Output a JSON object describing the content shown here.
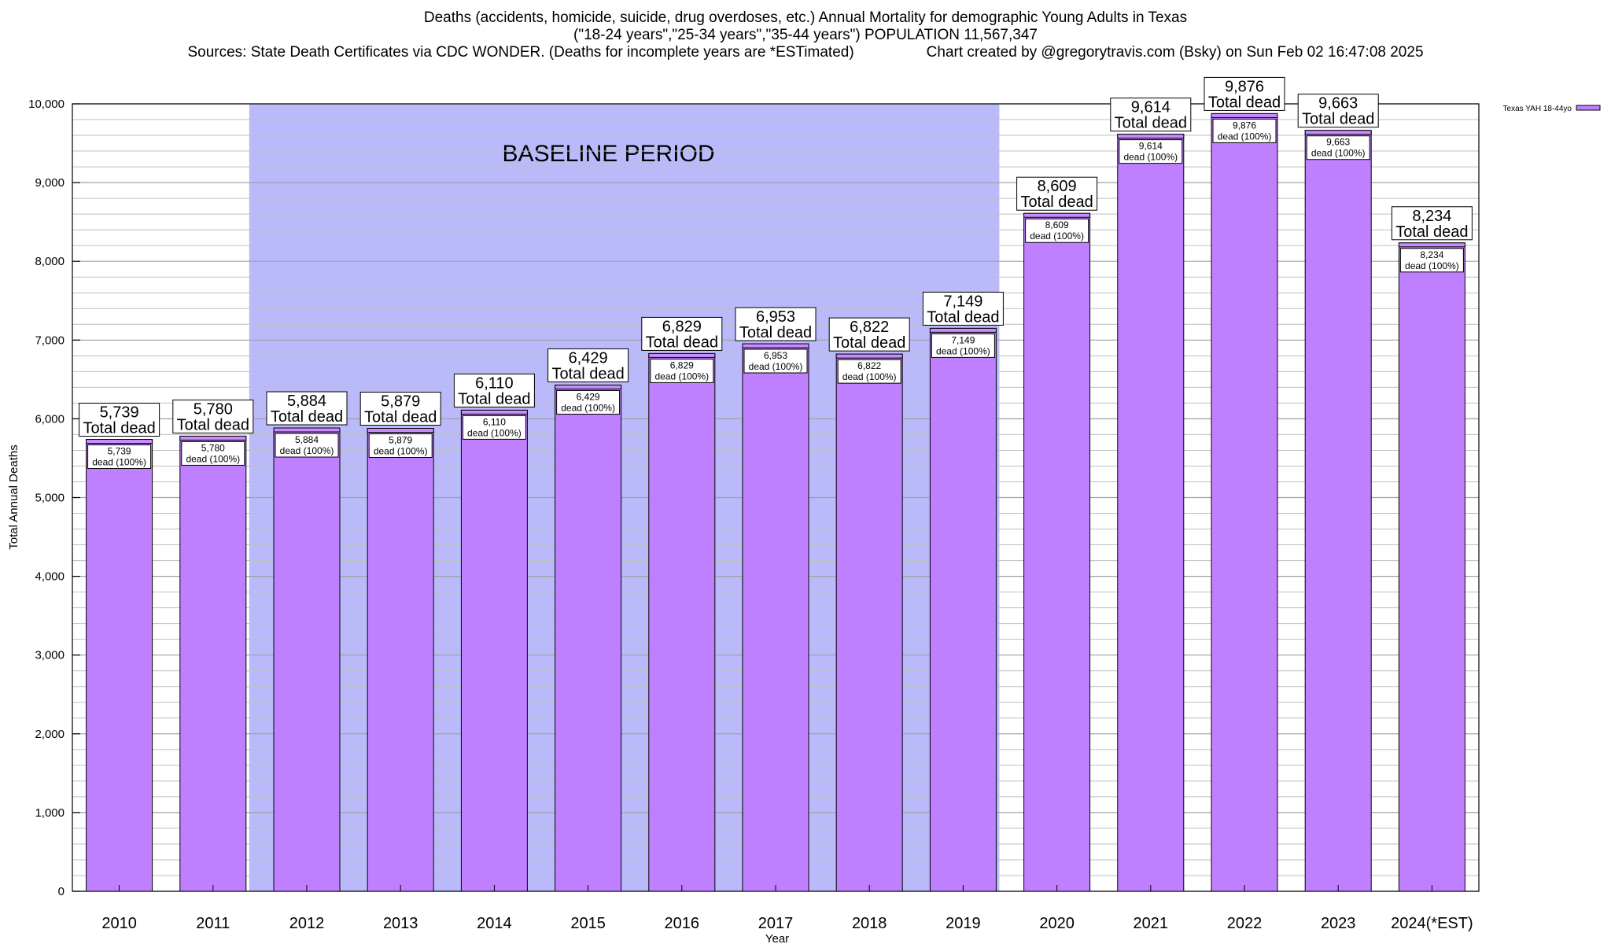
{
  "chart_data": {
    "type": "bar",
    "title_line1": "Deaths (accidents, homicide, suicide, drug overdoses, etc.) Annual Mortality for demographic Young Adults in Texas",
    "title_line2": "(\"18-24 years\",\"25-34 years\",\"35-44 years\") POPULATION 11,567,347",
    "sources": "Sources: State Death Certificates via CDC WONDER. (Deaths for incomplete years are *ESTimated)",
    "credit": "Chart created by @gregorytravis.com (Bsky) on Sun Feb 02 16:47:08 2025",
    "xlabel": "Year",
    "ylabel": "Total Annual Deaths",
    "ylim": [
      0,
      10000
    ],
    "yticks": [
      0,
      1000,
      2000,
      3000,
      4000,
      5000,
      6000,
      7000,
      8000,
      9000,
      10000
    ],
    "ytick_labels": [
      "0",
      "1,000",
      "2,000",
      "3,000",
      "4,000",
      "5,000",
      "6,000",
      "7,000",
      "8,000",
      "9,000",
      "10,000"
    ],
    "categories": [
      "2010",
      "2011",
      "2012",
      "2013",
      "2014",
      "2015",
      "2016",
      "2017",
      "2018",
      "2019",
      "2020",
      "2021",
      "2022",
      "2023",
      "2024(*EST)"
    ],
    "values": [
      5739,
      5780,
      5884,
      5879,
      6110,
      6429,
      6829,
      6953,
      6822,
      7149,
      8609,
      9614,
      9876,
      9663,
      8234
    ],
    "value_labels": [
      "5,739",
      "5,780",
      "5,884",
      "5,879",
      "6,110",
      "6,429",
      "6,829",
      "6,953",
      "6,822",
      "7,149",
      "8,609",
      "9,614",
      "9,876",
      "9,663",
      "8,234"
    ],
    "total_label": "Total dead",
    "inner_label": "dead (100%)",
    "baseline": {
      "label": "BASELINE PERIOD",
      "start_category": "2012",
      "end_category": "2019"
    },
    "legend": {
      "label": "Texas YAH 18-44yo",
      "position": "top-right"
    },
    "grid": true,
    "colors": {
      "bar": "#bf80ff",
      "bar_top": "#c88cff",
      "baseline_band": "#babafa",
      "grid": "#bfbfbf"
    }
  }
}
